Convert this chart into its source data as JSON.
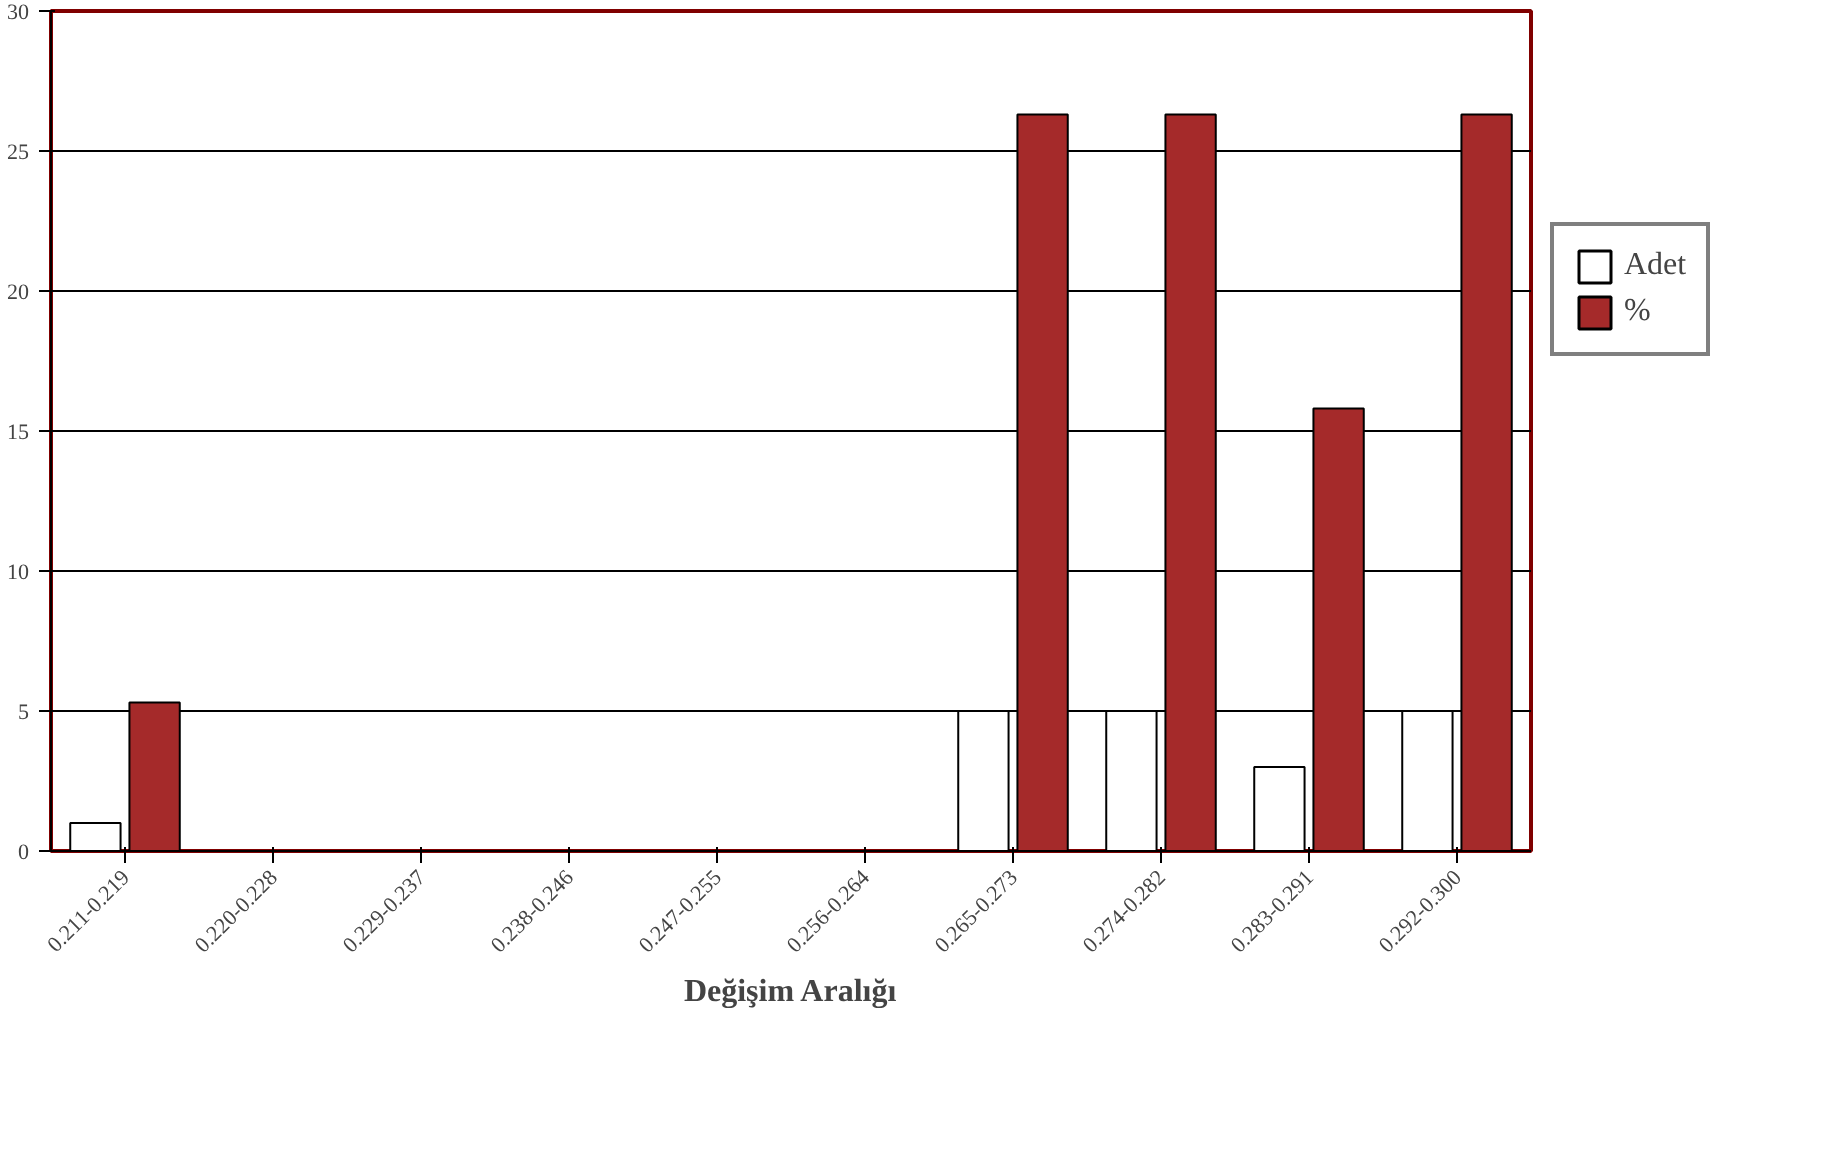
{
  "chart_data": {
    "type": "bar",
    "xlabel": "Değişim Aralığı",
    "categories": [
      "0.211-0.219",
      "0.220-0.228",
      "0.229-0.237",
      "0.238-0.246",
      "0.247-0.255",
      "0.256-0.264",
      "0.265-0.273",
      "0.274-0.282",
      "0.283-0.291",
      "0.292-0.300"
    ],
    "series": [
      {
        "name": "Adet",
        "color": "#ffffff",
        "values": [
          1,
          0,
          0,
          0,
          0,
          0,
          5,
          5,
          3,
          5
        ]
      },
      {
        "name": "%",
        "color": "#a52a2a",
        "values": [
          5.3,
          0,
          0,
          0,
          0,
          0,
          26.3,
          26.3,
          15.8,
          26.3
        ]
      }
    ],
    "ylim": [
      0,
      30
    ],
    "yticks": [
      0,
      5,
      10,
      15,
      20,
      25,
      30
    ],
    "grid": "y",
    "legend": "right"
  }
}
